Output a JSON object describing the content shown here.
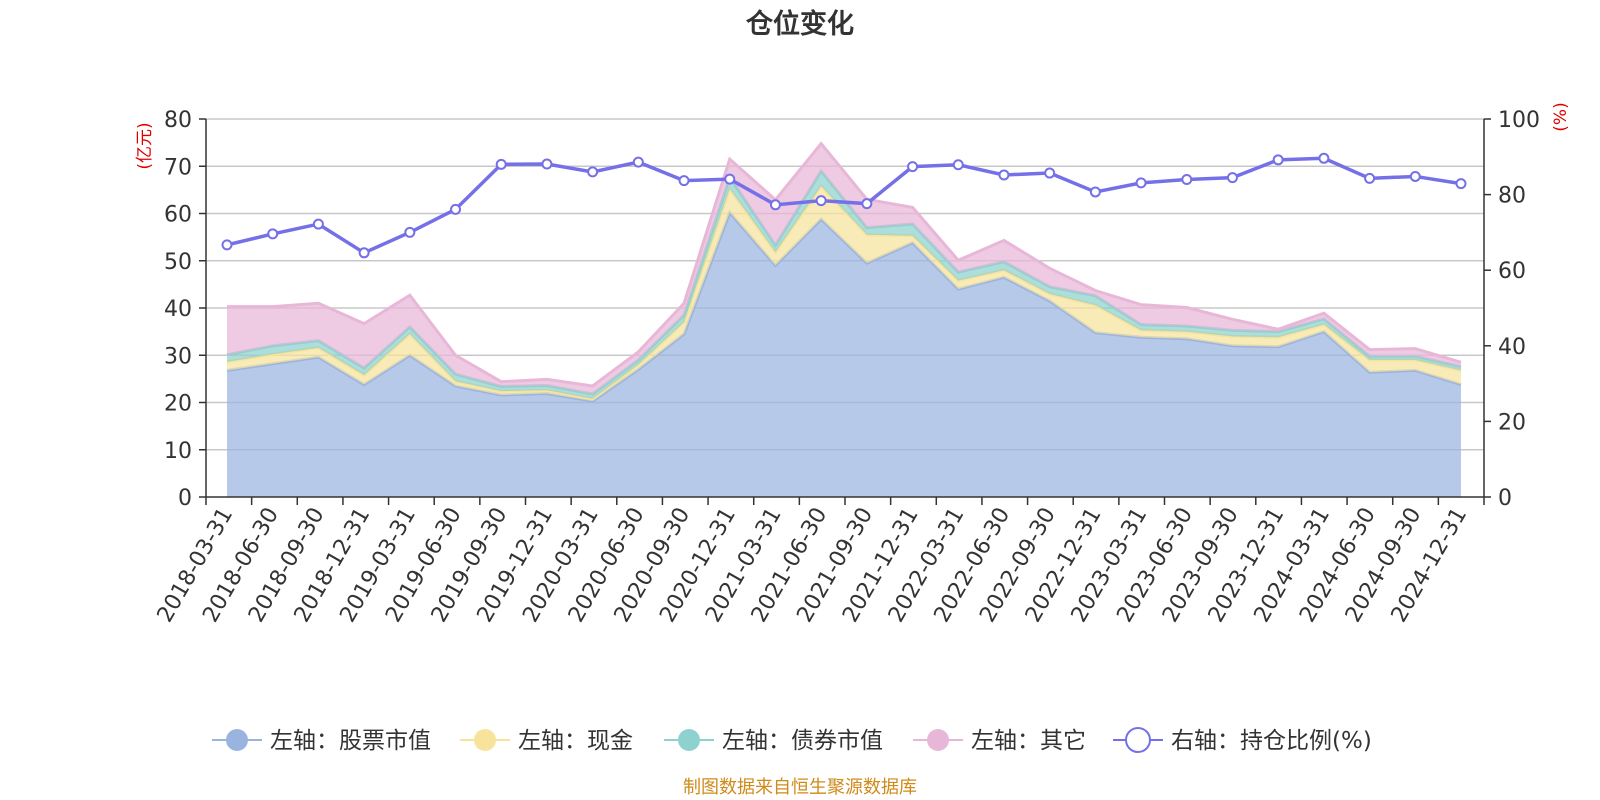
{
  "title": "仓位变化",
  "source": "制图数据来自恒生聚源数据库",
  "chart_data": {
    "type": "area",
    "title": "仓位变化",
    "left_axis": {
      "unit_label": "(亿元)",
      "min": 0,
      "max": 80,
      "ticks": [
        0,
        10,
        20,
        30,
        40,
        50,
        60,
        70,
        80
      ]
    },
    "right_axis": {
      "unit_label": "(%)",
      "min": 0,
      "max": 100,
      "ticks": [
        0,
        20,
        40,
        60,
        80,
        100
      ]
    },
    "categories": [
      "2018-03-31",
      "2018-06-30",
      "2018-09-30",
      "2018-12-31",
      "2019-03-31",
      "2019-06-30",
      "2019-09-30",
      "2019-12-31",
      "2020-03-31",
      "2020-06-30",
      "2020-09-30",
      "2020-12-31",
      "2021-03-31",
      "2021-06-30",
      "2021-09-30",
      "2021-12-31",
      "2022-03-31",
      "2022-06-30",
      "2022-09-30",
      "2022-12-31",
      "2023-03-31",
      "2023-06-30",
      "2023-09-30",
      "2023-12-31",
      "2024-03-31",
      "2024-06-30",
      "2024-09-30",
      "2024-12-31"
    ],
    "series": [
      {
        "name": "左轴：股票市值",
        "axis": "left",
        "kind": "stack",
        "color": "#9ab4e0",
        "values": [
          26.8,
          28.2,
          29.6,
          23.8,
          30.0,
          23.5,
          21.6,
          21.9,
          20.3,
          27.0,
          34.5,
          60.2,
          49.0,
          58.8,
          49.5,
          53.8,
          44.0,
          46.5,
          41.5,
          34.8,
          33.8,
          33.5,
          32.0,
          31.8,
          35.0,
          26.4,
          26.8,
          23.8
        ]
      },
      {
        "name": "左轴：现金",
        "axis": "left",
        "kind": "stack",
        "color": "#f7e39b",
        "values": [
          1.8,
          2.0,
          2.0,
          2.0,
          4.5,
          1.0,
          0.8,
          0.7,
          0.5,
          1.0,
          2.5,
          5.0,
          2.8,
          7.0,
          6.0,
          1.5,
          1.8,
          1.5,
          1.5,
          5.8,
          1.5,
          1.5,
          2.0,
          2.0,
          1.5,
          2.6,
          2.2,
          3.0
        ]
      },
      {
        "name": "左轴：债券市值",
        "axis": "left",
        "kind": "stack",
        "color": "#8fd1cf",
        "values": [
          1.5,
          1.8,
          1.5,
          1.5,
          1.5,
          1.5,
          1.0,
          1.0,
          1.0,
          1.0,
          1.5,
          2.5,
          1.5,
          3.2,
          1.5,
          2.5,
          1.8,
          1.8,
          1.5,
          2.0,
          1.2,
          1.2,
          1.3,
          1.2,
          1.2,
          0.8,
          0.8,
          0.8
        ]
      },
      {
        "name": "左轴：其它",
        "axis": "left",
        "kind": "stack",
        "color": "#e8b7d8",
        "values": [
          10.2,
          8.3,
          7.9,
          9.4,
          6.7,
          4.0,
          1.0,
          1.3,
          1.7,
          1.7,
          2.5,
          3.8,
          9.6,
          5.8,
          6.0,
          3.5,
          2.5,
          4.5,
          3.9,
          1.1,
          4.2,
          3.9,
          2.3,
          0.5,
          1.2,
          1.4,
          1.6,
          0.9
        ]
      },
      {
        "name": "右轴：持仓比例(%)",
        "axis": "right",
        "kind": "line",
        "color": "#7570e8",
        "values": [
          66.7,
          69.6,
          72.2,
          64.6,
          70.0,
          76.1,
          88.0,
          88.1,
          86.0,
          88.6,
          83.7,
          84.1,
          77.3,
          78.4,
          77.6,
          87.4,
          87.9,
          85.2,
          85.7,
          80.7,
          83.1,
          84.0,
          84.5,
          89.2,
          89.6,
          84.3,
          84.8,
          82.9
        ]
      }
    ],
    "grid": true,
    "legend_position": "bottom"
  }
}
